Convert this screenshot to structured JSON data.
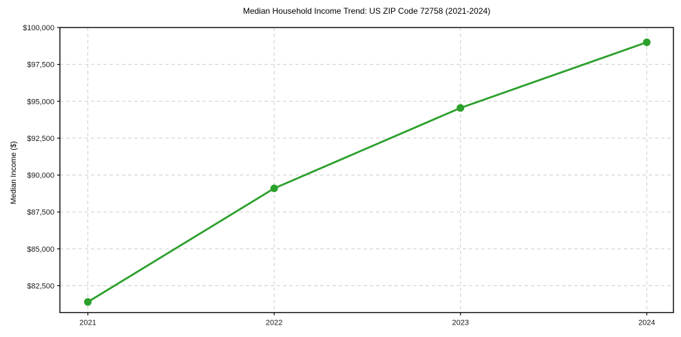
{
  "chart_data": {
    "type": "line",
    "title": "Median Household Income Trend: US ZIP Code 72758 (2021-2024)",
    "xlabel": "",
    "ylabel": "Median Income ($)",
    "x": [
      2021,
      2022,
      2023,
      2024
    ],
    "categories": [
      "2021",
      "2022",
      "2023",
      "2024"
    ],
    "series": [
      {
        "name": "Median Household Income",
        "values": [
          81400,
          89100,
          94550,
          99000
        ]
      }
    ],
    "xlim": [
      2020.85,
      2024.143
    ],
    "ylim": [
      80680,
      100000
    ],
    "yticks": [
      82500,
      85000,
      87500,
      90000,
      92500,
      95000,
      97500,
      100000
    ],
    "ytick_labels": [
      "$82,500",
      "$85,000",
      "$87,500",
      "$90,000",
      "$92,500",
      "$95,000",
      "$97,500",
      "$100,000"
    ],
    "grid": true,
    "grid_style": "dashed",
    "legend": false,
    "line_color": "#2ca02c",
    "marker": "circle",
    "marker_color": "#2ca02c"
  },
  "colors": {
    "background": "#ffffff",
    "grid": "#cdcdcd",
    "spine": "#000000",
    "accent_green": "#2ca02c"
  }
}
